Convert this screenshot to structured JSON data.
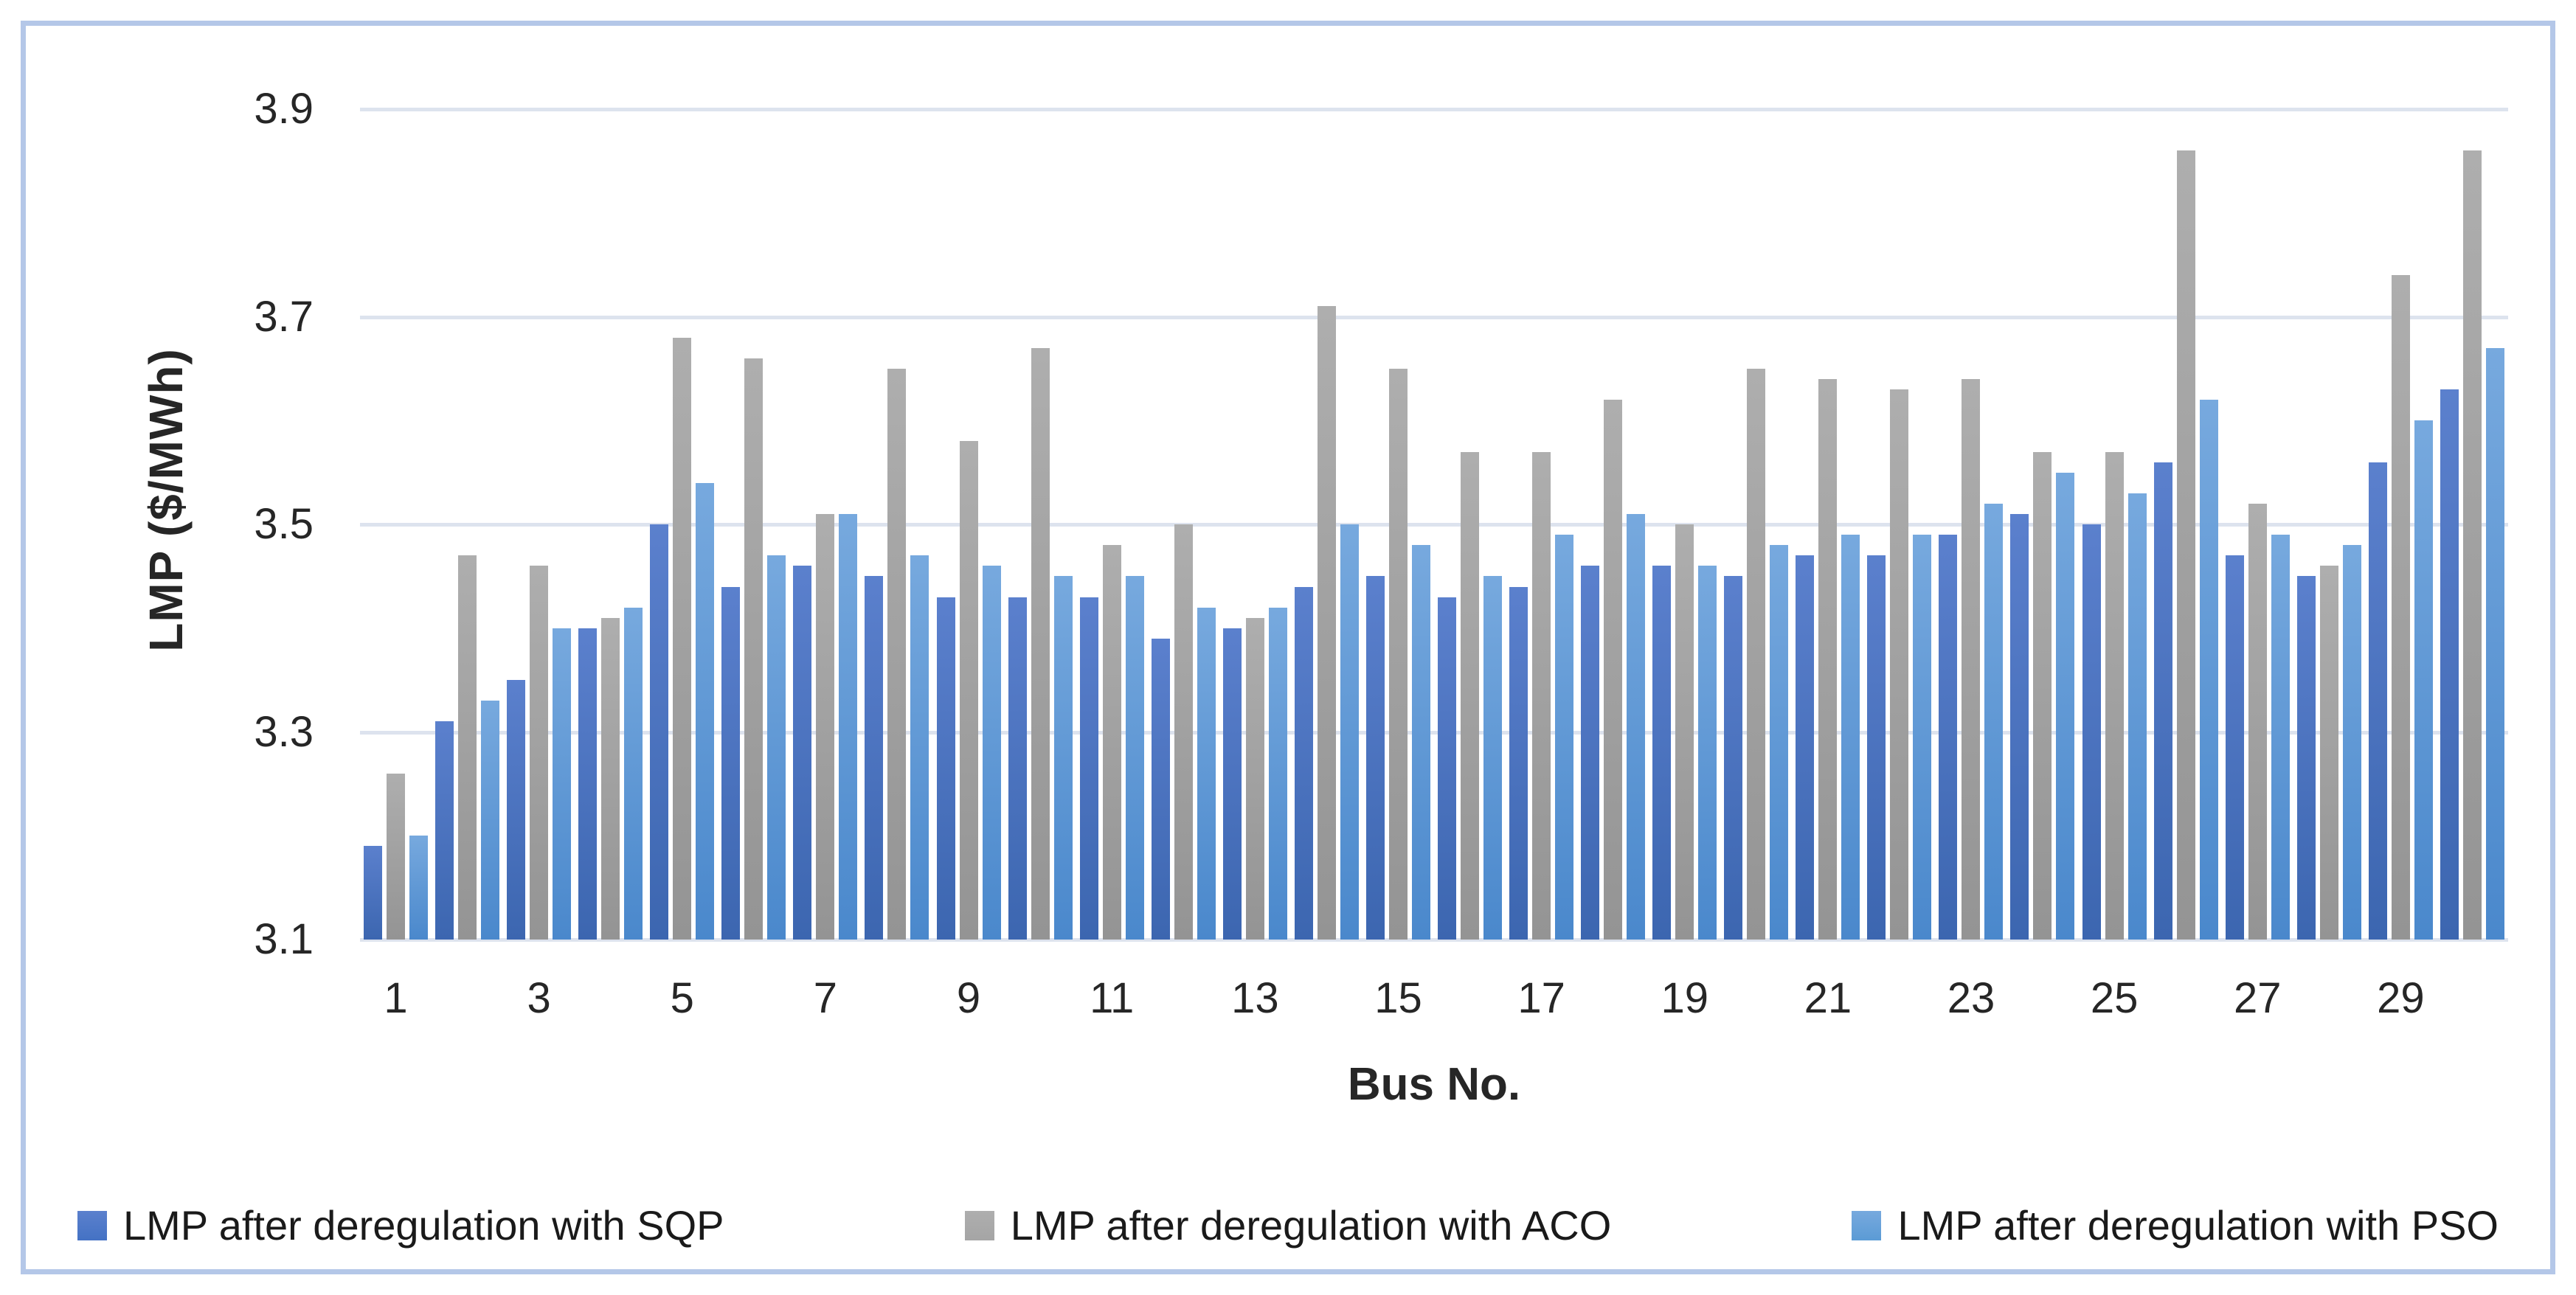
{
  "figure": {
    "frame_border_color": "#b4c7e8",
    "background_color": "#ffffff",
    "gridline_color": "#dde3ee",
    "text_color": "#262626"
  },
  "chart_data": {
    "type": "bar",
    "title": "",
    "xlabel": "Bus No.",
    "ylabel": "LMP ($/MWh)",
    "x": [
      1,
      2,
      3,
      4,
      5,
      6,
      7,
      8,
      9,
      10,
      11,
      12,
      13,
      14,
      15,
      16,
      17,
      18,
      19,
      20,
      21,
      22,
      23,
      24,
      25,
      26,
      27,
      28,
      29,
      30
    ],
    "x_tick_labels": [
      "1",
      "3",
      "5",
      "7",
      "9",
      "11",
      "13",
      "15",
      "17",
      "19",
      "21",
      "23",
      "25",
      "27",
      "29"
    ],
    "y_ticks": [
      "3.1",
      "3.3",
      "3.5",
      "3.7",
      "3.9"
    ],
    "ylim": [
      3.1,
      3.9
    ],
    "grid": true,
    "legend_position": "bottom",
    "series": [
      {
        "name": "LMP after deregulation with SQP",
        "color": "#4472c4",
        "gradient_top": "#5b80cd",
        "gradient_bottom": "#3c66b0",
        "values": [
          3.19,
          3.31,
          3.35,
          3.4,
          3.5,
          3.44,
          3.46,
          3.45,
          3.43,
          3.43,
          3.43,
          3.39,
          3.4,
          3.44,
          3.45,
          3.43,
          3.44,
          3.46,
          3.46,
          3.45,
          3.47,
          3.47,
          3.49,
          3.51,
          3.5,
          3.56,
          3.47,
          3.45,
          3.56,
          3.63
        ]
      },
      {
        "name": "LMP after deregulation with ACO",
        "color": "#a5a5a5",
        "gradient_top": "#aeaeae",
        "gradient_bottom": "#949494",
        "values": [
          3.26,
          3.47,
          3.46,
          3.41,
          3.68,
          3.66,
          3.51,
          3.65,
          3.58,
          3.67,
          3.48,
          3.5,
          3.41,
          3.71,
          3.65,
          3.57,
          3.57,
          3.62,
          3.5,
          3.65,
          3.64,
          3.63,
          3.64,
          3.57,
          3.57,
          3.86,
          3.52,
          3.46,
          3.74,
          3.86
        ]
      },
      {
        "name": "LMP after deregulation with PSO",
        "color": "#5b9bd5",
        "gradient_top": "#77a9de",
        "gradient_bottom": "#4a88cc",
        "values": [
          3.2,
          3.33,
          3.4,
          3.42,
          3.54,
          3.47,
          3.51,
          3.47,
          3.46,
          3.45,
          3.45,
          3.42,
          3.42,
          3.5,
          3.48,
          3.45,
          3.49,
          3.51,
          3.46,
          3.48,
          3.49,
          3.49,
          3.52,
          3.55,
          3.53,
          3.62,
          3.49,
          3.48,
          3.6,
          3.67
        ]
      }
    ]
  }
}
